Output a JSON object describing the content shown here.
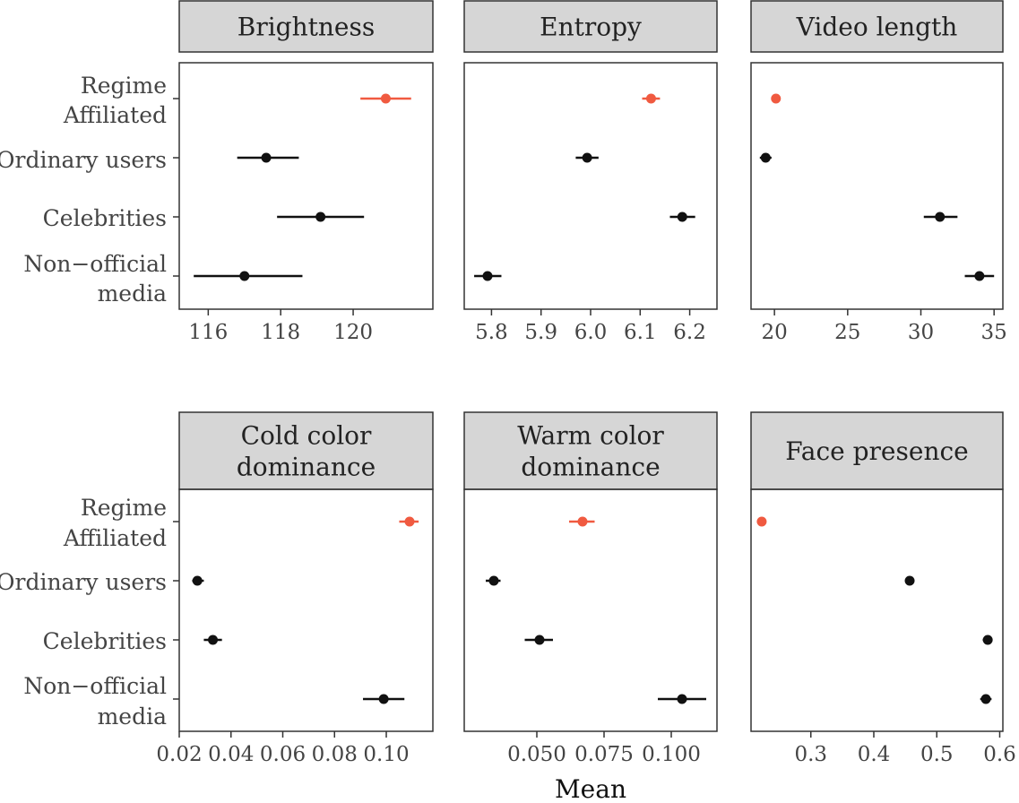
{
  "chart_data": {
    "type": "scatter",
    "subtype": "point-range facets",
    "xlabel": "Mean",
    "categories": [
      "Regime Affiliated",
      "Ordinary users",
      "Celebrities",
      "Non−official media"
    ],
    "category_lines": [
      [
        "Regime",
        "Affiliated"
      ],
      [
        "Ordinary users"
      ],
      [
        "Celebrities"
      ],
      [
        "Non−official",
        "media"
      ]
    ],
    "colors": {
      "Regime Affiliated": "#f05a40",
      "Ordinary users": "#111111",
      "Celebrities": "#111111",
      "Non−official media": "#111111"
    },
    "grid": false,
    "facets": [
      {
        "title": [
          "Brightness"
        ],
        "xlim": [
          115.2,
          122.2
        ],
        "ticks": [
          116,
          118,
          120
        ],
        "tick_labels": [
          "116",
          "118",
          "120"
        ],
        "means": [
          120.9,
          117.6,
          119.1,
          117.0
        ],
        "lower": [
          120.2,
          116.8,
          117.9,
          115.6
        ],
        "upper": [
          121.6,
          118.5,
          120.3,
          118.6
        ]
      },
      {
        "title": [
          "Entropy"
        ],
        "xlim": [
          5.745,
          6.255
        ],
        "ticks": [
          5.8,
          5.9,
          6.0,
          6.1,
          6.2
        ],
        "tick_labels": [
          "5.8",
          "5.9",
          "6.0",
          "6.1",
          "6.2"
        ],
        "means": [
          6.122,
          5.993,
          6.185,
          5.792
        ],
        "lower": [
          6.104,
          5.97,
          6.16,
          5.765
        ],
        "upper": [
          6.14,
          6.016,
          6.211,
          5.82
        ]
      },
      {
        "title": [
          "Video length"
        ],
        "xlim": [
          18.4,
          35.6
        ],
        "ticks": [
          20,
          25,
          30,
          35
        ],
        "tick_labels": [
          "20",
          "25",
          "30",
          "35"
        ],
        "means": [
          20.1,
          19.4,
          31.3,
          34.0
        ],
        "lower": [
          19.8,
          19.0,
          30.2,
          33.0
        ],
        "upper": [
          20.4,
          19.8,
          32.5,
          35.0
        ]
      },
      {
        "title": [
          "Cold color",
          "dominance"
        ],
        "xlim": [
          0.02,
          0.118
        ],
        "ticks": [
          0.02,
          0.04,
          0.06,
          0.08,
          0.1
        ],
        "tick_labels": [
          "0.02",
          "0.04",
          "0.06",
          "0.08",
          "0.10"
        ],
        "means": [
          0.109,
          0.027,
          0.033,
          0.099
        ],
        "lower": [
          0.105,
          0.025,
          0.0295,
          0.091
        ],
        "upper": [
          0.1125,
          0.0295,
          0.0365,
          0.107
        ]
      },
      {
        "title": [
          "Warm color",
          "dominance"
        ],
        "xlim": [
          0.023,
          0.117
        ],
        "ticks": [
          0.05,
          0.075,
          0.1
        ],
        "tick_labels": [
          "0.050",
          "0.075",
          "0.100"
        ],
        "means": [
          0.067,
          0.034,
          0.051,
          0.104
        ],
        "lower": [
          0.062,
          0.031,
          0.0455,
          0.095
        ],
        "upper": [
          0.0715,
          0.0365,
          0.056,
          0.113
        ]
      },
      {
        "title": [
          "Face presence"
        ],
        "xlim": [
          0.205,
          0.605
        ],
        "ticks": [
          0.3,
          0.4,
          0.5,
          0.6
        ],
        "tick_labels": [
          "0.3",
          "0.4",
          "0.5",
          "0.6"
        ],
        "means": [
          0.222,
          0.457,
          0.581,
          0.578
        ],
        "lower": [
          0.222,
          0.453,
          0.573,
          0.569
        ],
        "upper": [
          0.222,
          0.461,
          0.588,
          0.587
        ]
      }
    ]
  }
}
